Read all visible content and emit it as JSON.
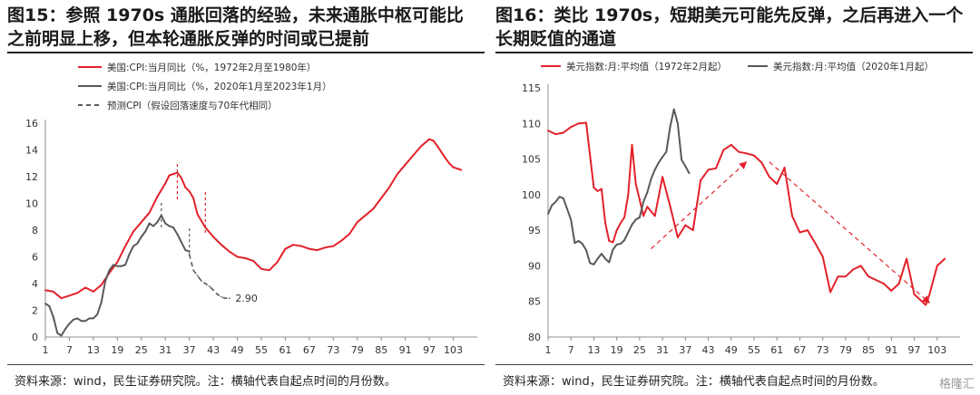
{
  "panels": [
    {
      "title": "图15：参照 1970s 通胀回落的经验，未来通胀中枢可能比之前明显上移，但本轮通胀反弹的时间或已提前",
      "source": "资料来源：wind，民生证券研究院。注：横轴代表自起点时间的月份数。"
    },
    {
      "title": "图16：类比 1970s，短期美元可能先反弹，之后再进入一个长期贬值的通道",
      "source": "资料来源：wind，民生证券研究院。注：横轴代表自起点时间的月份数。"
    }
  ],
  "watermark": "格隆汇",
  "colors": {
    "red": "#e3212a",
    "gray": "#595959",
    "axis": "#8c8c8c"
  },
  "chart_data": [
    {
      "type": "line",
      "xlim": [
        1,
        109
      ],
      "ylim": [
        0,
        16
      ],
      "xticks": [
        1,
        7,
        13,
        19,
        25,
        31,
        37,
        43,
        49,
        55,
        61,
        67,
        73,
        79,
        85,
        91,
        97,
        103
      ],
      "yticks": [
        0,
        2,
        4,
        6,
        8,
        10,
        12,
        14,
        16
      ],
      "series": [
        {
          "name": "美国:CPI:当月同比（%，1972年2月至1980年）",
          "color": "#e3212a",
          "dash": "solid",
          "x": [
            1,
            3,
            5,
            7,
            9,
            11,
            13,
            15,
            17,
            19,
            21,
            23,
            25,
            27,
            29,
            30,
            31,
            32,
            33,
            34,
            35,
            36,
            37,
            38,
            39,
            41,
            43,
            45,
            47,
            49,
            51,
            53,
            55,
            57,
            59,
            61,
            63,
            65,
            67,
            69,
            71,
            73,
            75,
            77,
            79,
            81,
            83,
            85,
            87,
            89,
            91,
            93,
            95,
            97,
            98,
            99,
            101,
            102,
            103,
            105
          ],
          "y": [
            3.5,
            3.4,
            2.9,
            3.1,
            3.3,
            3.7,
            3.4,
            3.9,
            4.8,
            5.6,
            6.8,
            7.9,
            8.6,
            9.3,
            10.5,
            11,
            11.5,
            12.1,
            12.2,
            12.3,
            11.9,
            11.2,
            10.9,
            10.4,
            9.2,
            8.2,
            7.5,
            6.9,
            6.4,
            6,
            5.9,
            5.7,
            5.1,
            5,
            5.6,
            6.6,
            6.9,
            6.8,
            6.6,
            6.5,
            6.7,
            6.8,
            7.2,
            7.7,
            8.6,
            9.1,
            9.6,
            10.4,
            11.2,
            12.2,
            12.9,
            13.6,
            14.3,
            14.8,
            14.7,
            14.3,
            13.4,
            13,
            12.7,
            12.5
          ]
        },
        {
          "name": "美国:CPI:当月同比（%，2020年1月至2023年1月）",
          "color": "#595959",
          "dash": "solid",
          "x": [
            1,
            2,
            3,
            4,
            5,
            6,
            7,
            8,
            9,
            10,
            11,
            12,
            13,
            14,
            15,
            16,
            17,
            18,
            19,
            20,
            21,
            22,
            23,
            24,
            25,
            26,
            27,
            28,
            29,
            30,
            31,
            32,
            33,
            34,
            35,
            36,
            37
          ],
          "y": [
            2.5,
            2.3,
            1.5,
            0.3,
            0.1,
            0.6,
            1,
            1.3,
            1.4,
            1.2,
            1.2,
            1.4,
            1.4,
            1.7,
            2.6,
            4.2,
            5,
            5.4,
            5.3,
            5.3,
            5.4,
            6.2,
            6.8,
            7,
            7.5,
            7.9,
            8.5,
            8.3,
            8.6,
            9.1,
            8.5,
            8.3,
            8.2,
            7.7,
            7.1,
            6.5,
            6.4
          ]
        },
        {
          "name": "预测CPI（假设回落速度与70年代相同）",
          "color": "#595959",
          "dash": "dashed",
          "x": [
            37,
            38,
            39,
            40,
            41,
            42,
            43,
            44,
            45,
            46,
            47
          ],
          "y": [
            6.2,
            5,
            4.6,
            4.2,
            4,
            3.8,
            3.5,
            3.2,
            3.0,
            2.9,
            2.9
          ]
        }
      ],
      "annotations": [
        {
          "text": "2.90",
          "x": 48.5,
          "y": 2.9
        }
      ],
      "markers": [
        {
          "x": 30,
          "y_from": 8.2,
          "y_to": 10.2,
          "color": "#595959"
        },
        {
          "x": 34,
          "y_from": 10.3,
          "y_to": 13.1,
          "color": "#e3212a"
        },
        {
          "x": 37,
          "y_from": 6.3,
          "y_to": 8.2,
          "color": "#595959"
        },
        {
          "x": 41,
          "y_from": 7.8,
          "y_to": 10.9,
          "color": "#e3212a"
        }
      ],
      "legend_position": "top-left",
      "grid": false
    },
    {
      "type": "line",
      "xlim": [
        1,
        109
      ],
      "ylim": [
        80,
        115
      ],
      "xticks": [
        1,
        7,
        13,
        19,
        25,
        31,
        37,
        43,
        49,
        55,
        61,
        67,
        73,
        79,
        85,
        91,
        97,
        103
      ],
      "yticks": [
        80,
        85,
        90,
        95,
        100,
        105,
        110,
        115
      ],
      "series": [
        {
          "name": "美元指数:月:平均值（1972年2月起）",
          "color": "#e3212a",
          "dash": "solid",
          "x": [
            1,
            3,
            5,
            7,
            9,
            11,
            13,
            14,
            15,
            16,
            17,
            18,
            19,
            20,
            21,
            22,
            23,
            24,
            25,
            26,
            27,
            29,
            31,
            33,
            35,
            37,
            39,
            41,
            43,
            45,
            47,
            49,
            51,
            53,
            55,
            57,
            59,
            61,
            63,
            65,
            67,
            69,
            71,
            73,
            75,
            77,
            79,
            80,
            81,
            83,
            85,
            87,
            89,
            91,
            93,
            95,
            97,
            98,
            99,
            100,
            101,
            103,
            105
          ],
          "y": [
            109,
            108.5,
            108.7,
            109.5,
            110,
            110.1,
            101,
            100.5,
            100.8,
            96,
            93.5,
            93.3,
            95,
            96,
            96.8,
            100,
            107,
            101.5,
            99.3,
            97,
            98.3,
            97,
            102.5,
            98.4,
            94,
            95.7,
            95,
            102,
            103.5,
            103.7,
            106.3,
            107,
            106,
            105.8,
            105.5,
            104.5,
            102.5,
            101.5,
            103.8,
            97,
            94.7,
            95,
            93.2,
            91.3,
            86.3,
            88.5,
            88.5,
            89,
            89.5,
            90,
            88.5,
            88,
            87.5,
            86.5,
            87.5,
            91,
            86,
            85.5,
            85,
            84.5,
            86,
            90,
            91
          ]
        },
        {
          "name": "美元指数:月:平均值（2020年1月起）",
          "color": "#595959",
          "dash": "solid",
          "x": [
            1,
            2,
            3,
            4,
            5,
            6,
            7,
            8,
            9,
            10,
            11,
            12,
            13,
            14,
            15,
            16,
            17,
            18,
            19,
            20,
            21,
            22,
            23,
            24,
            25,
            26,
            27,
            28,
            29,
            30,
            31,
            32,
            33,
            34,
            35,
            36,
            37,
            38
          ],
          "y": [
            97.3,
            98.5,
            99,
            99.7,
            99.5,
            98,
            96.5,
            93.2,
            93.5,
            93.1,
            92.2,
            90.4,
            90.2,
            91,
            91.7,
            91,
            90.5,
            92.3,
            93,
            93.1,
            93.6,
            94.7,
            95.8,
            96.5,
            96.8,
            99,
            100.3,
            102.2,
            103.5,
            104.5,
            105.3,
            106,
            109.5,
            112,
            110,
            104.9,
            104,
            103
          ]
        }
      ],
      "arrows": [
        {
          "from": [
            28,
            92.4
          ],
          "to": [
            53,
            104.6
          ]
        },
        {
          "from": [
            59,
            104.6
          ],
          "to": [
            101,
            84.8
          ]
        }
      ],
      "legend_position": "top",
      "grid": false
    }
  ]
}
